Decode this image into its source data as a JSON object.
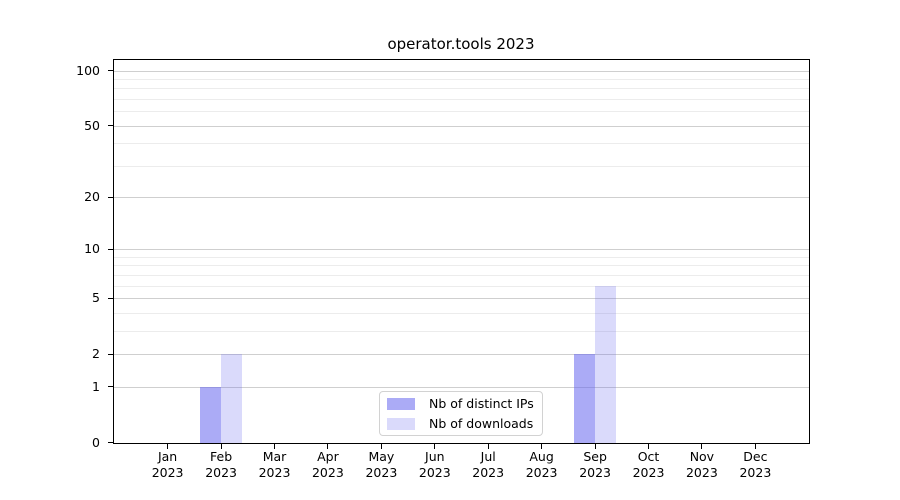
{
  "chart_data": {
    "type": "bar",
    "title": "operator.tools 2023",
    "x_categories": [
      {
        "month": "Jan",
        "year": "2023"
      },
      {
        "month": "Feb",
        "year": "2023"
      },
      {
        "month": "Mar",
        "year": "2023"
      },
      {
        "month": "Apr",
        "year": "2023"
      },
      {
        "month": "May",
        "year": "2023"
      },
      {
        "month": "Jun",
        "year": "2023"
      },
      {
        "month": "Jul",
        "year": "2023"
      },
      {
        "month": "Aug",
        "year": "2023"
      },
      {
        "month": "Sep",
        "year": "2023"
      },
      {
        "month": "Oct",
        "year": "2023"
      },
      {
        "month": "Nov",
        "year": "2023"
      },
      {
        "month": "Dec",
        "year": "2023"
      }
    ],
    "series": [
      {
        "name": "Nb of distinct IPs",
        "color": "rgba(102,102,238,0.55)",
        "values": [
          0,
          1,
          0,
          0,
          0,
          0,
          0,
          0,
          2,
          0,
          0,
          0
        ]
      },
      {
        "name": "Nb of downloads",
        "color": "rgba(102,102,238,0.24)",
        "values": [
          0,
          2,
          0,
          0,
          0,
          0,
          0,
          0,
          6,
          0,
          0,
          0
        ]
      }
    ],
    "yscale": "log1p",
    "ylim": [
      0,
      114
    ],
    "y_major_ticks": [
      0,
      1,
      2,
      5,
      10,
      20,
      50,
      100
    ],
    "y_minor_gridlines": [
      3,
      4,
      6,
      7,
      8,
      9,
      30,
      40,
      60,
      70,
      80,
      90
    ],
    "grid": "on",
    "legend_position": "lower center"
  },
  "colors": {
    "bar_distinct_ips": "rgba(102,102,238,0.55)",
    "bar_downloads": "rgba(102,102,238,0.24)",
    "grid_major": "#cfcfcf",
    "grid_minor": "#ececec",
    "spine": "#000000",
    "legend_border": "#d2d2d2"
  }
}
